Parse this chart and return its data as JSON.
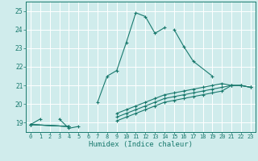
{
  "xlabel": "Humidex (Indice chaleur)",
  "bg_color": "#d0ecec",
  "grid_color": "#ffffff",
  "line_color": "#1a7a6e",
  "xlim": [
    -0.5,
    23.5
  ],
  "ylim": [
    18.5,
    25.5
  ],
  "yticks": [
    19,
    20,
    21,
    22,
    23,
    24,
    25
  ],
  "xticks": [
    0,
    1,
    2,
    3,
    4,
    5,
    6,
    7,
    8,
    9,
    10,
    11,
    12,
    13,
    14,
    15,
    16,
    17,
    18,
    19,
    20,
    21,
    22,
    23
  ],
  "series": [
    {
      "x": [
        0,
        1,
        3,
        4,
        5,
        7,
        8,
        9,
        10,
        11,
        12,
        13,
        14,
        15,
        16,
        17,
        19,
        20,
        21,
        22,
        23
      ],
      "y": [
        18.9,
        19.2,
        19.2,
        18.7,
        18.8,
        20.1,
        21.5,
        21.8,
        23.3,
        24.9,
        24.7,
        23.8,
        24.1,
        24.0,
        23.1,
        22.3,
        21.5,
        21.3,
        21.0,
        21.0,
        20.9
      ],
      "gaps_before": [
        2,
        6,
        18
      ]
    },
    {
      "x": [
        0,
        4,
        9,
        10,
        11,
        12,
        13,
        14,
        15,
        16,
        17,
        18,
        19,
        20,
        21,
        22,
        23
      ],
      "y": [
        18.9,
        18.8,
        19.5,
        19.7,
        19.9,
        20.1,
        20.3,
        20.5,
        20.6,
        20.7,
        20.8,
        20.9,
        21.0,
        21.1,
        21.0,
        21.0,
        20.9
      ]
    },
    {
      "x": [
        0,
        4,
        9,
        10,
        11,
        12,
        13,
        14,
        15,
        16,
        17,
        18,
        19,
        20,
        21,
        22,
        23
      ],
      "y": [
        18.9,
        18.8,
        19.3,
        19.5,
        19.7,
        19.9,
        20.1,
        20.3,
        20.4,
        20.5,
        20.6,
        20.7,
        20.8,
        20.9,
        21.0,
        21.0,
        20.9
      ]
    },
    {
      "x": [
        0,
        4,
        9,
        10,
        11,
        12,
        13,
        14,
        15,
        16,
        17,
        18,
        19,
        20,
        21,
        22,
        23
      ],
      "y": [
        18.9,
        18.8,
        19.1,
        19.3,
        19.5,
        19.7,
        19.9,
        20.1,
        20.2,
        20.3,
        20.4,
        20.5,
        20.6,
        20.7,
        21.0,
        21.0,
        20.9
      ]
    }
  ]
}
